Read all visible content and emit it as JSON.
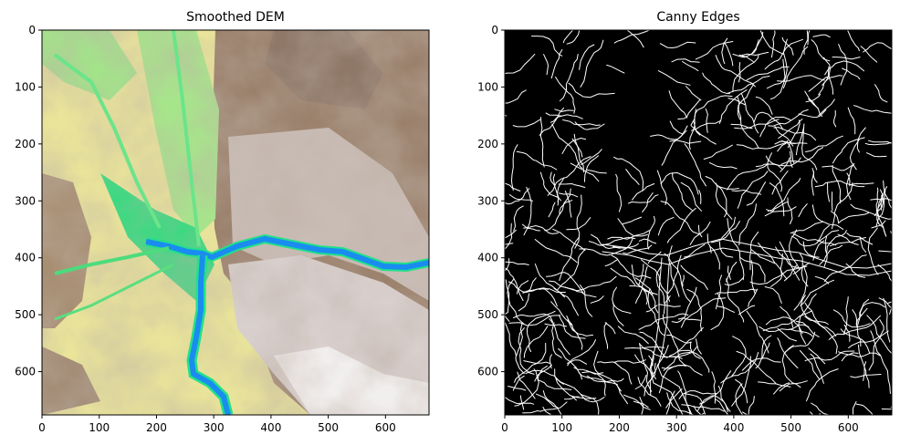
{
  "chart_data": [
    {
      "type": "heatmap",
      "title": "Smoothed DEM",
      "colormap": "terrain",
      "xlim": [
        0,
        676
      ],
      "ylim": [
        676,
        0
      ],
      "xticks": [
        0,
        100,
        200,
        300,
        400,
        500,
        600
      ],
      "yticks": [
        0,
        100,
        200,
        300,
        400,
        500,
        600
      ],
      "colors": {
        "water": "#1a8cf0",
        "lowland": "#22d07a",
        "meadow": "#9de78a",
        "hills": "#f3ee96",
        "slopes": "#8a7262",
        "peaks": "#ffffff"
      }
    },
    {
      "type": "heatmap",
      "title": "Canny Edges",
      "colormap": "gray",
      "xlim": [
        0,
        676
      ],
      "ylim": [
        676,
        0
      ],
      "xticks": [
        0,
        100,
        200,
        300,
        400,
        500,
        600
      ],
      "yticks": [
        0,
        100,
        200,
        300,
        400,
        500,
        600
      ],
      "colors": {
        "background": "#000000",
        "edge": "#ffffff"
      }
    }
  ]
}
